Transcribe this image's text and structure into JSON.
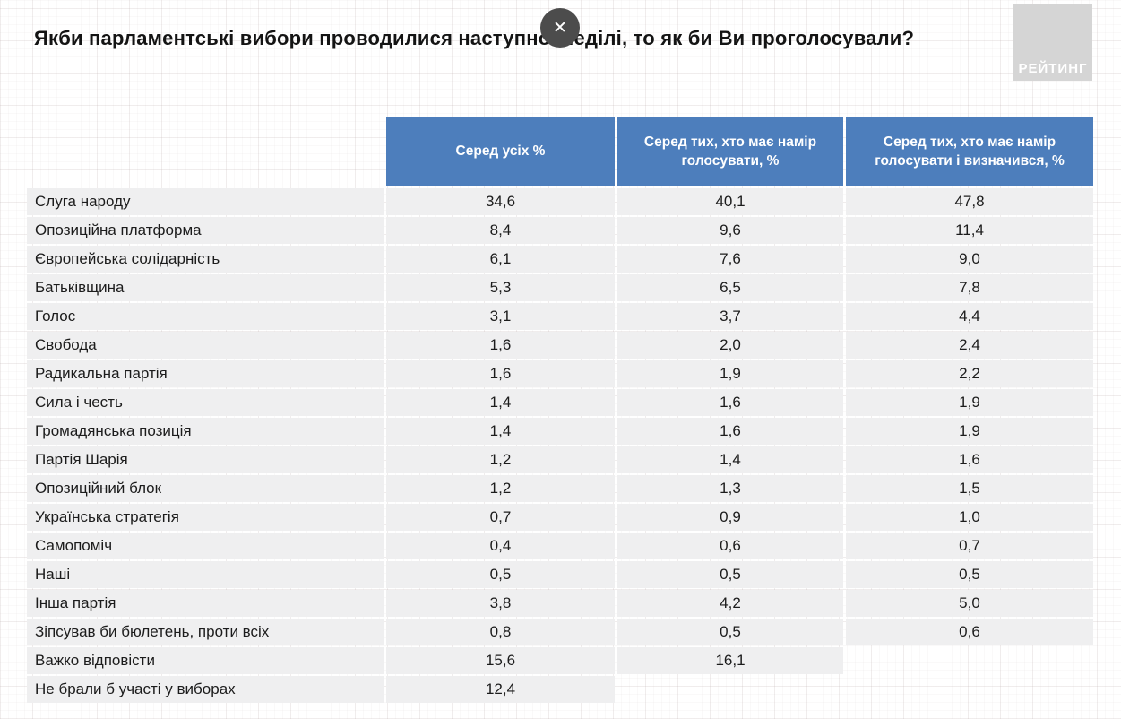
{
  "title": "Якби парламентські вибори проводилися наступної неділі, то як би Ви проголосували?",
  "close_button": {
    "icon": "close-icon",
    "glyph": "✕"
  },
  "logo": {
    "text": "РЕЙТИНГ"
  },
  "colors": {
    "header_blue": "#4d7ebc",
    "row_gray": "#efeff0",
    "close_circle_gray": "#4c4c4c",
    "logo_gray": "#d5d5d5"
  },
  "chart_data": {
    "type": "table",
    "title": "Якби парламентські вибори проводилися наступної неділі, то як би Ви проголосували?",
    "columns": [
      "Серед усіх %",
      "Серед тих, хто має намір голосувати, %",
      "Серед тих, хто має намір голосувати і визначився, %"
    ],
    "rows": [
      {
        "label": "Слуга народу",
        "values": [
          "34,6",
          "40,1",
          "47,8"
        ]
      },
      {
        "label": "Опозиційна платформа",
        "values": [
          "8,4",
          "9,6",
          "11,4"
        ]
      },
      {
        "label": "Європейська солідарність",
        "values": [
          "6,1",
          "7,6",
          "9,0"
        ]
      },
      {
        "label": "Батьківщина",
        "values": [
          "5,3",
          "6,5",
          "7,8"
        ]
      },
      {
        "label": "Голос",
        "values": [
          "3,1",
          "3,7",
          "4,4"
        ]
      },
      {
        "label": "Свобода",
        "values": [
          "1,6",
          "2,0",
          "2,4"
        ]
      },
      {
        "label": "Радикальна партія",
        "values": [
          "1,6",
          "1,9",
          "2,2"
        ]
      },
      {
        "label": "Сила і честь",
        "values": [
          "1,4",
          "1,6",
          "1,9"
        ]
      },
      {
        "label": "Громадянська позиція",
        "values": [
          "1,4",
          "1,6",
          "1,9"
        ]
      },
      {
        "label": "Партія Шарія",
        "values": [
          "1,2",
          "1,4",
          "1,6"
        ]
      },
      {
        "label": "Опозиційний блок",
        "values": [
          "1,2",
          "1,3",
          "1,5"
        ]
      },
      {
        "label": "Українська стратегія",
        "values": [
          "0,7",
          "0,9",
          "1,0"
        ]
      },
      {
        "label": "Самопоміч",
        "values": [
          "0,4",
          "0,6",
          "0,7"
        ]
      },
      {
        "label": "Наші",
        "values": [
          "0,5",
          "0,5",
          "0,5"
        ]
      },
      {
        "label": "Інша партія",
        "values": [
          "3,8",
          "4,2",
          "5,0"
        ]
      },
      {
        "label": "Зіпсував би бюлетень, проти всіх",
        "values": [
          "0,8",
          "0,5",
          "0,6"
        ]
      },
      {
        "label": "Важко відповісти",
        "values": [
          "15,6",
          "16,1",
          null
        ]
      },
      {
        "label": "Не брали б участі у виборах",
        "values": [
          "12,4",
          null,
          null
        ]
      }
    ]
  }
}
